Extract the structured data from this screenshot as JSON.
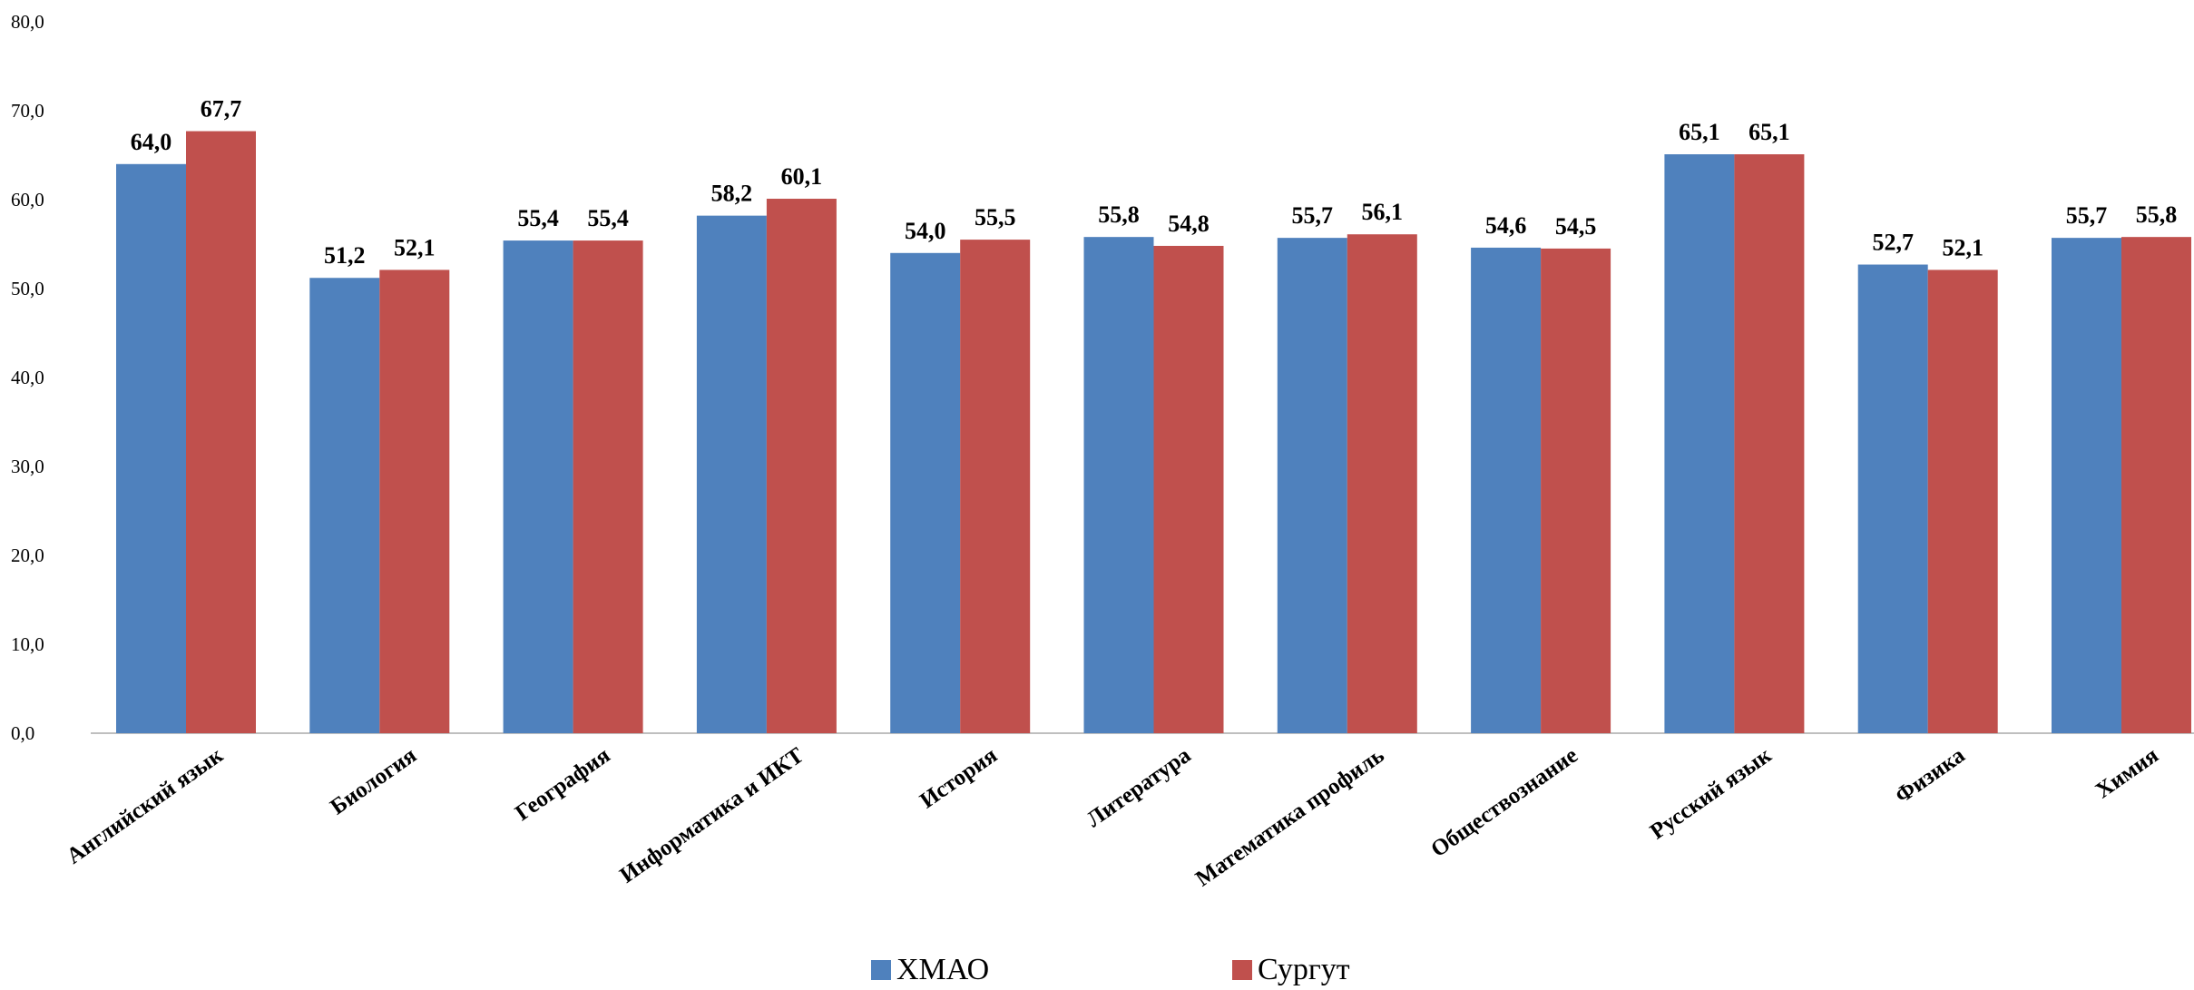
{
  "chart_data": {
    "type": "bar",
    "categories": [
      "Английский язык",
      "Биология",
      "География",
      "Информатика и ИКТ",
      "История",
      "Литература",
      "Математика профиль",
      "Обществознание",
      "Русский язык",
      "Физика",
      "Химия"
    ],
    "series": [
      {
        "name": "ХМАО",
        "color": "#4F81BD",
        "values": [
          64.0,
          51.2,
          55.4,
          58.2,
          54.0,
          55.8,
          55.7,
          54.6,
          65.1,
          52.7,
          55.7
        ]
      },
      {
        "name": "Сургут",
        "color": "#C0504D",
        "values": [
          67.7,
          52.1,
          55.4,
          60.1,
          55.5,
          54.8,
          56.1,
          54.5,
          65.1,
          52.1,
          55.8
        ]
      }
    ],
    "yticks": [
      "0,0",
      "10,0",
      "20,0",
      "30,0",
      "40,0",
      "50,0",
      "60,0",
      "70,0",
      "80,0"
    ],
    "ylim": [
      0,
      80
    ],
    "grid": false,
    "legend_position": "bottom",
    "title": "",
    "xlabel": "",
    "ylabel": ""
  }
}
